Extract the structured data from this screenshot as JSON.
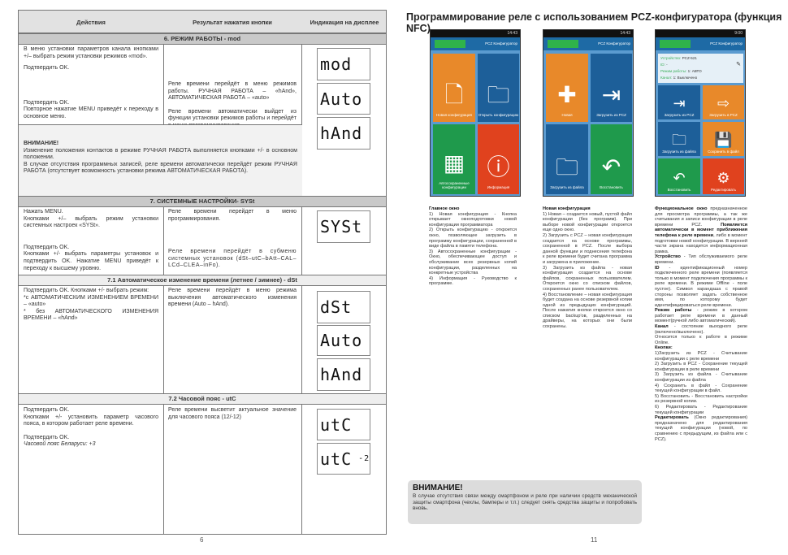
{
  "left_page": {
    "headers": [
      "Действия",
      "Результат нажатия кнопки",
      "Индикация на дисплее"
    ],
    "sec6": {
      "title": "6. РЕЖИМ РАБОТЫ - mod",
      "a1": "В меню установки параметров канала кнопками +/– выбрать режим установки режимов «mod».",
      "a2": "Подтвердить OK.",
      "a3": "Подтвердить OK.",
      "a4": "Повторное нажатие MENU приведёт к переходу в основное меню.",
      "r1": "Реле времени перейдёт в меню режимов работы. РУЧНАЯ РАБОТА – «hAnd», АВТОМАТИЧЕСКАЯ РАБОТА – «auto»",
      "r2": "Реле времени автоматически выйдет из функции установки режимов работы и перейдёт в меню программирования.",
      "warn_title": "ВНИМАНИЕ!",
      "warn1": "Изменение положения контактов в режиме РУЧНАЯ РАБОТА выполняется кнопками +/- в основном положении.",
      "warn2": "В случае отсутствия программных записей, реле времени автоматически перейдёт режим РУЧНАЯ РАБОТА (отсутствует возможность установки режима АВТОМАТИЧЕСКАЯ РАБОТА).",
      "displays": [
        "mod",
        "Auto",
        "hAnd"
      ]
    },
    "sec7": {
      "title": "7. СИСТЕМНЫЕ НАСТРОЙКИ- SYSt",
      "a1": "Нажать MENU.",
      "a2": "Кнопками +/– выбрать режим установки системных настроек «SYSt».",
      "a3": "Подтвердить OK.",
      "a4": "Кнопками +/- выбрать параметры установок и подтвердить OK. Нажатие MENU приведёт к переходу к высшему уровню.",
      "r1": "Реле времени перейдет в меню программирования.",
      "r2": "Реле времени перейдёт в субменю системных установок (dSt–utC–bAtt–CAL–LCd–CLEA–inFo).",
      "displays": [
        "SYSt"
      ]
    },
    "sec71": {
      "title": "7.1 Автоматическое изменение времени (летнее / зимнее) - dSt",
      "a1": "Подтвердить OK. Кнопками +/- выбрать режим:",
      "a2": "*с АВТОМАТИЧЕСКИМ ИЗМЕНЕНИЕМ ВРЕМЕНИ – «auto»",
      "a3": "* без АВТОМАТИЧЕСКОГО ИЗМЕНЕНИЯ ВРЕМЕНИ – «hAnd»",
      "r1": "Реле времени перейдёт в меню режима выключения автоматического изменения времени (Auto – hAnd).",
      "displays": [
        "dSt",
        "Auto",
        "hAnd"
      ]
    },
    "sec72": {
      "title": "7.2 Часовой пояс - utC",
      "a1": "Подтвердить OK.",
      "a2": "Кнопками +/- установить параметр часового пояса, в котором работает реле времени.",
      "a3": "Подтвердить OK.",
      "a4": "Часовой пояс Беларуси: +3",
      "r1": "Реле времени высветит актуальное значение для часового пояса (12/-12)",
      "displays": [
        "utC",
        "utC"
      ],
      "display_value": "-2"
    },
    "page_number": "6"
  },
  "right_page": {
    "title": "Программирование реле с использованием PCZ-конфигуратора (функция NFC)",
    "app_title": "PCZ Конфигуратор",
    "phone1": {
      "time": "14:43",
      "tiles": [
        "Новая конфигурация",
        "Открыть конфигурацию",
        "Автосохраненные конфигурации",
        "Информация"
      ]
    },
    "phone2": {
      "time": "14:43",
      "tiles": [
        "Новая",
        "Загрузить из PCZ",
        "Загрузить из файла",
        "Восстановить"
      ]
    },
    "phone3": {
      "time": "9:00",
      "info": {
        "device_label": "Устройство:",
        "device": "PCZ-521",
        "id_label": "ID:",
        "id": "-",
        "mode_label": "Режим работы:",
        "mode": "1: АВТО",
        "channel_label": "Канал:",
        "channel": "1: Выключено"
      },
      "tiles": [
        "Загрузить из PCZ",
        "Загрузить в PCZ",
        "Загрузить из файла",
        "Сохранить в файл",
        "Восстановить",
        "Редактировать"
      ]
    },
    "col1": {
      "title": "Главное окно",
      "items": [
        "1) Новая конфигурация - Кнопка открывает окноподготовки новой конфигурации программатора",
        "2) Открыть конфигурацию - откроется окно, позволяющее загрузить в программу конфигурации, сохраненной в виде файла в памяти телефона.",
        "3) Автосохраненные конфигурации - Окно, обеспечивающее доступ и обслуживание всех резервных копий конфигурации, разделенных на конкретные устройства",
        "4) Информация - Руководство к программе."
      ]
    },
    "col2": {
      "title": "Новая конфигурация",
      "items": [
        "1) Новая – создается новый, пустой файл конфигурации (без программ). При выборе новой конфигурации откроется еще одно окно.",
        "2) Загрузить с PCZ – новая конфигурация создается на основе программы, сохраненной в PCZ. После выбора данной функции и поднесения телефона к реле времени будет считана программа и загружена в приложение.",
        "3) Загрузить из файла - новая конфигурация создается на основе файлов, сохраненных пользователем. Откроется окно со списком файлов, сохраненных ранее пользователем.",
        "4) Восстановление – новая конфигурация будет создана на основе резервной копии одной из предыдущих конфигураций. После нажатия кнопки откроется окно со списком backup'ов, разделенных на драйверы, на которых они были сохранены."
      ]
    },
    "col3": {
      "p1_bold": "Функциональное окно",
      "p1": "предназначенное для просмотра программы, а так же считывания и записи конфигурации в реле времени PCZ.",
      "p1_bold2": "Появляется автоматически в момент приближения телефона к реле времени",
      "p1_end": ", либо в момент подготовки новой конфигурации. В верхней части экрана находится информационная рамка.",
      "device_b": "Устройство",
      "device": " - Тип обслуживаемого реле времени.",
      "id_b": "ID",
      "id": " - идентификационный номер подключенного реле времени (появляется только в момент подключения программы к реле времени. В режиме Offline - поле пустое). Символ карандаша с правой стороны позволяет задать собственное имя, по которому будет идентифицироваться реле времени.",
      "mode_b": "Режим работы",
      "mode": " - режим в котором работает реле времени в данный момент(ручной либо автоматический).",
      "channel_b": "Канал",
      "channel": " - состояние выходного реле (включено/выключено).",
      "online": "Относится только к работе в режиме Online.",
      "buttons_b": "Кнопки:",
      "buttons": [
        "1)Загрузить из PCZ - Считывание конфигурации с реле времени",
        "2) Загрузить в PCZ - Сохранение текущей конфигурации в реле времени",
        "3) Загрузить из файла - Считывание конфигурации из файла",
        "4) Сохранить в файл - Сохранение текущей конфигурации в файл.",
        "5) Восстановить - Восстановить настройки из резервной копии.",
        "6) Редактировать - Редактирование текущей конфигурации"
      ],
      "edit_b": "Редактировать",
      "edit": " (Окно редактирования) предназначено для редактирования текущей конфигурации (новой, по сравнению с предыдущим, из файла или с PCZ)."
    },
    "warning": {
      "title": "ВНИМАНИЕ!",
      "text": "В случае отсутствия связи между смартфоном и реле при наличии средств механической защиты смартфона (чехлы, бамперы и т.п.) следует снять средства защиты и попробовать вновь."
    },
    "page_number": "11"
  }
}
